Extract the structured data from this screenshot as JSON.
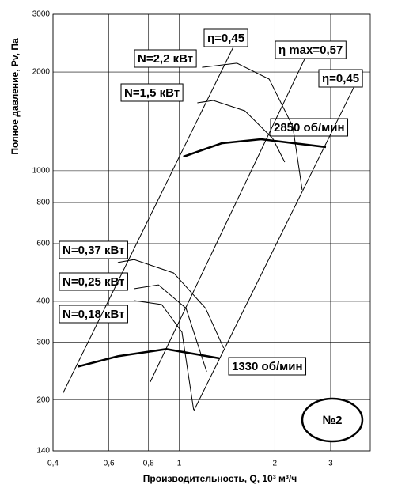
{
  "chart_data": {
    "type": "line",
    "x_label": "Производительность, Q, 10³ м³/ч",
    "y_label": "Полное давление, Pv, Па",
    "log_x": true,
    "log_y": true,
    "grid": true,
    "xlim": [
      0.4,
      4
    ],
    "ylim": [
      140,
      3000
    ],
    "xticks": [
      {
        "value": 0.4,
        "label": "0,4"
      },
      {
        "value": 0.6,
        "label": "0,6"
      },
      {
        "value": 0.8,
        "label": "0,8"
      },
      1,
      2,
      3
    ],
    "yticks": [
      140,
      200,
      300,
      400,
      600,
      800,
      1000,
      2000,
      3000
    ],
    "badge": "№2",
    "series": [
      {
        "name": "2850 об/мин",
        "color": "#000000",
        "thick": true,
        "x": [
          1.03,
          1.36,
          1.81,
          2.9
        ],
        "values": [
          1104,
          1213,
          1248,
          1181
        ]
      },
      {
        "name": "1330 об/мин",
        "color": "#000000",
        "thick": true,
        "x": [
          0.48,
          0.64,
          0.91,
          1.34
        ],
        "values": [
          253,
          272,
          286,
          268
        ]
      },
      {
        "name": "N=2,2 кВт",
        "color": "#000000",
        "thick": false,
        "x": [
          1.18,
          1.52,
          1.92,
          2.28,
          2.44
        ],
        "values": [
          2067,
          2127,
          1903,
          1364,
          875
        ]
      },
      {
        "name": "N=1,5 кВт",
        "color": "#000000",
        "thick": false,
        "x": [
          1.14,
          1.28,
          1.61,
          1.97,
          2.15
        ],
        "values": [
          1611,
          1638,
          1523,
          1254,
          1062
        ]
      },
      {
        "name": "N=0,37 кВт",
        "color": "#000000",
        "thick": false,
        "x": [
          0.64,
          0.72,
          0.96,
          1.21,
          1.38
        ],
        "values": [
          525,
          536,
          488,
          381,
          288
        ]
      },
      {
        "name": "N=0,25 кВт",
        "color": "#000000",
        "thick": false,
        "x": [
          0.72,
          0.86,
          1.05,
          1.22
        ],
        "values": [
          437,
          449,
          381,
          244
        ]
      },
      {
        "name": "N=0,18 кВт",
        "color": "#000000",
        "thick": false,
        "x": [
          0.72,
          0.88,
          1.02,
          1.11
        ],
        "values": [
          402,
          391,
          322,
          187
        ]
      },
      {
        "name": "η=0,45",
        "color": "#000000",
        "thick": false,
        "x": [
          0.43,
          1.52
        ],
        "values": [
          210,
          2510
        ]
      },
      {
        "name": "η max=0,57",
        "color": "#000000",
        "thick": false,
        "x": [
          0.81,
          2.55
        ],
        "values": [
          227,
          2310
        ]
      },
      {
        "name": "η=0,45",
        "color": "#000000",
        "thick": false,
        "x": [
          1.11,
          3.71
        ],
        "values": [
          185,
          1957
        ]
      }
    ]
  }
}
